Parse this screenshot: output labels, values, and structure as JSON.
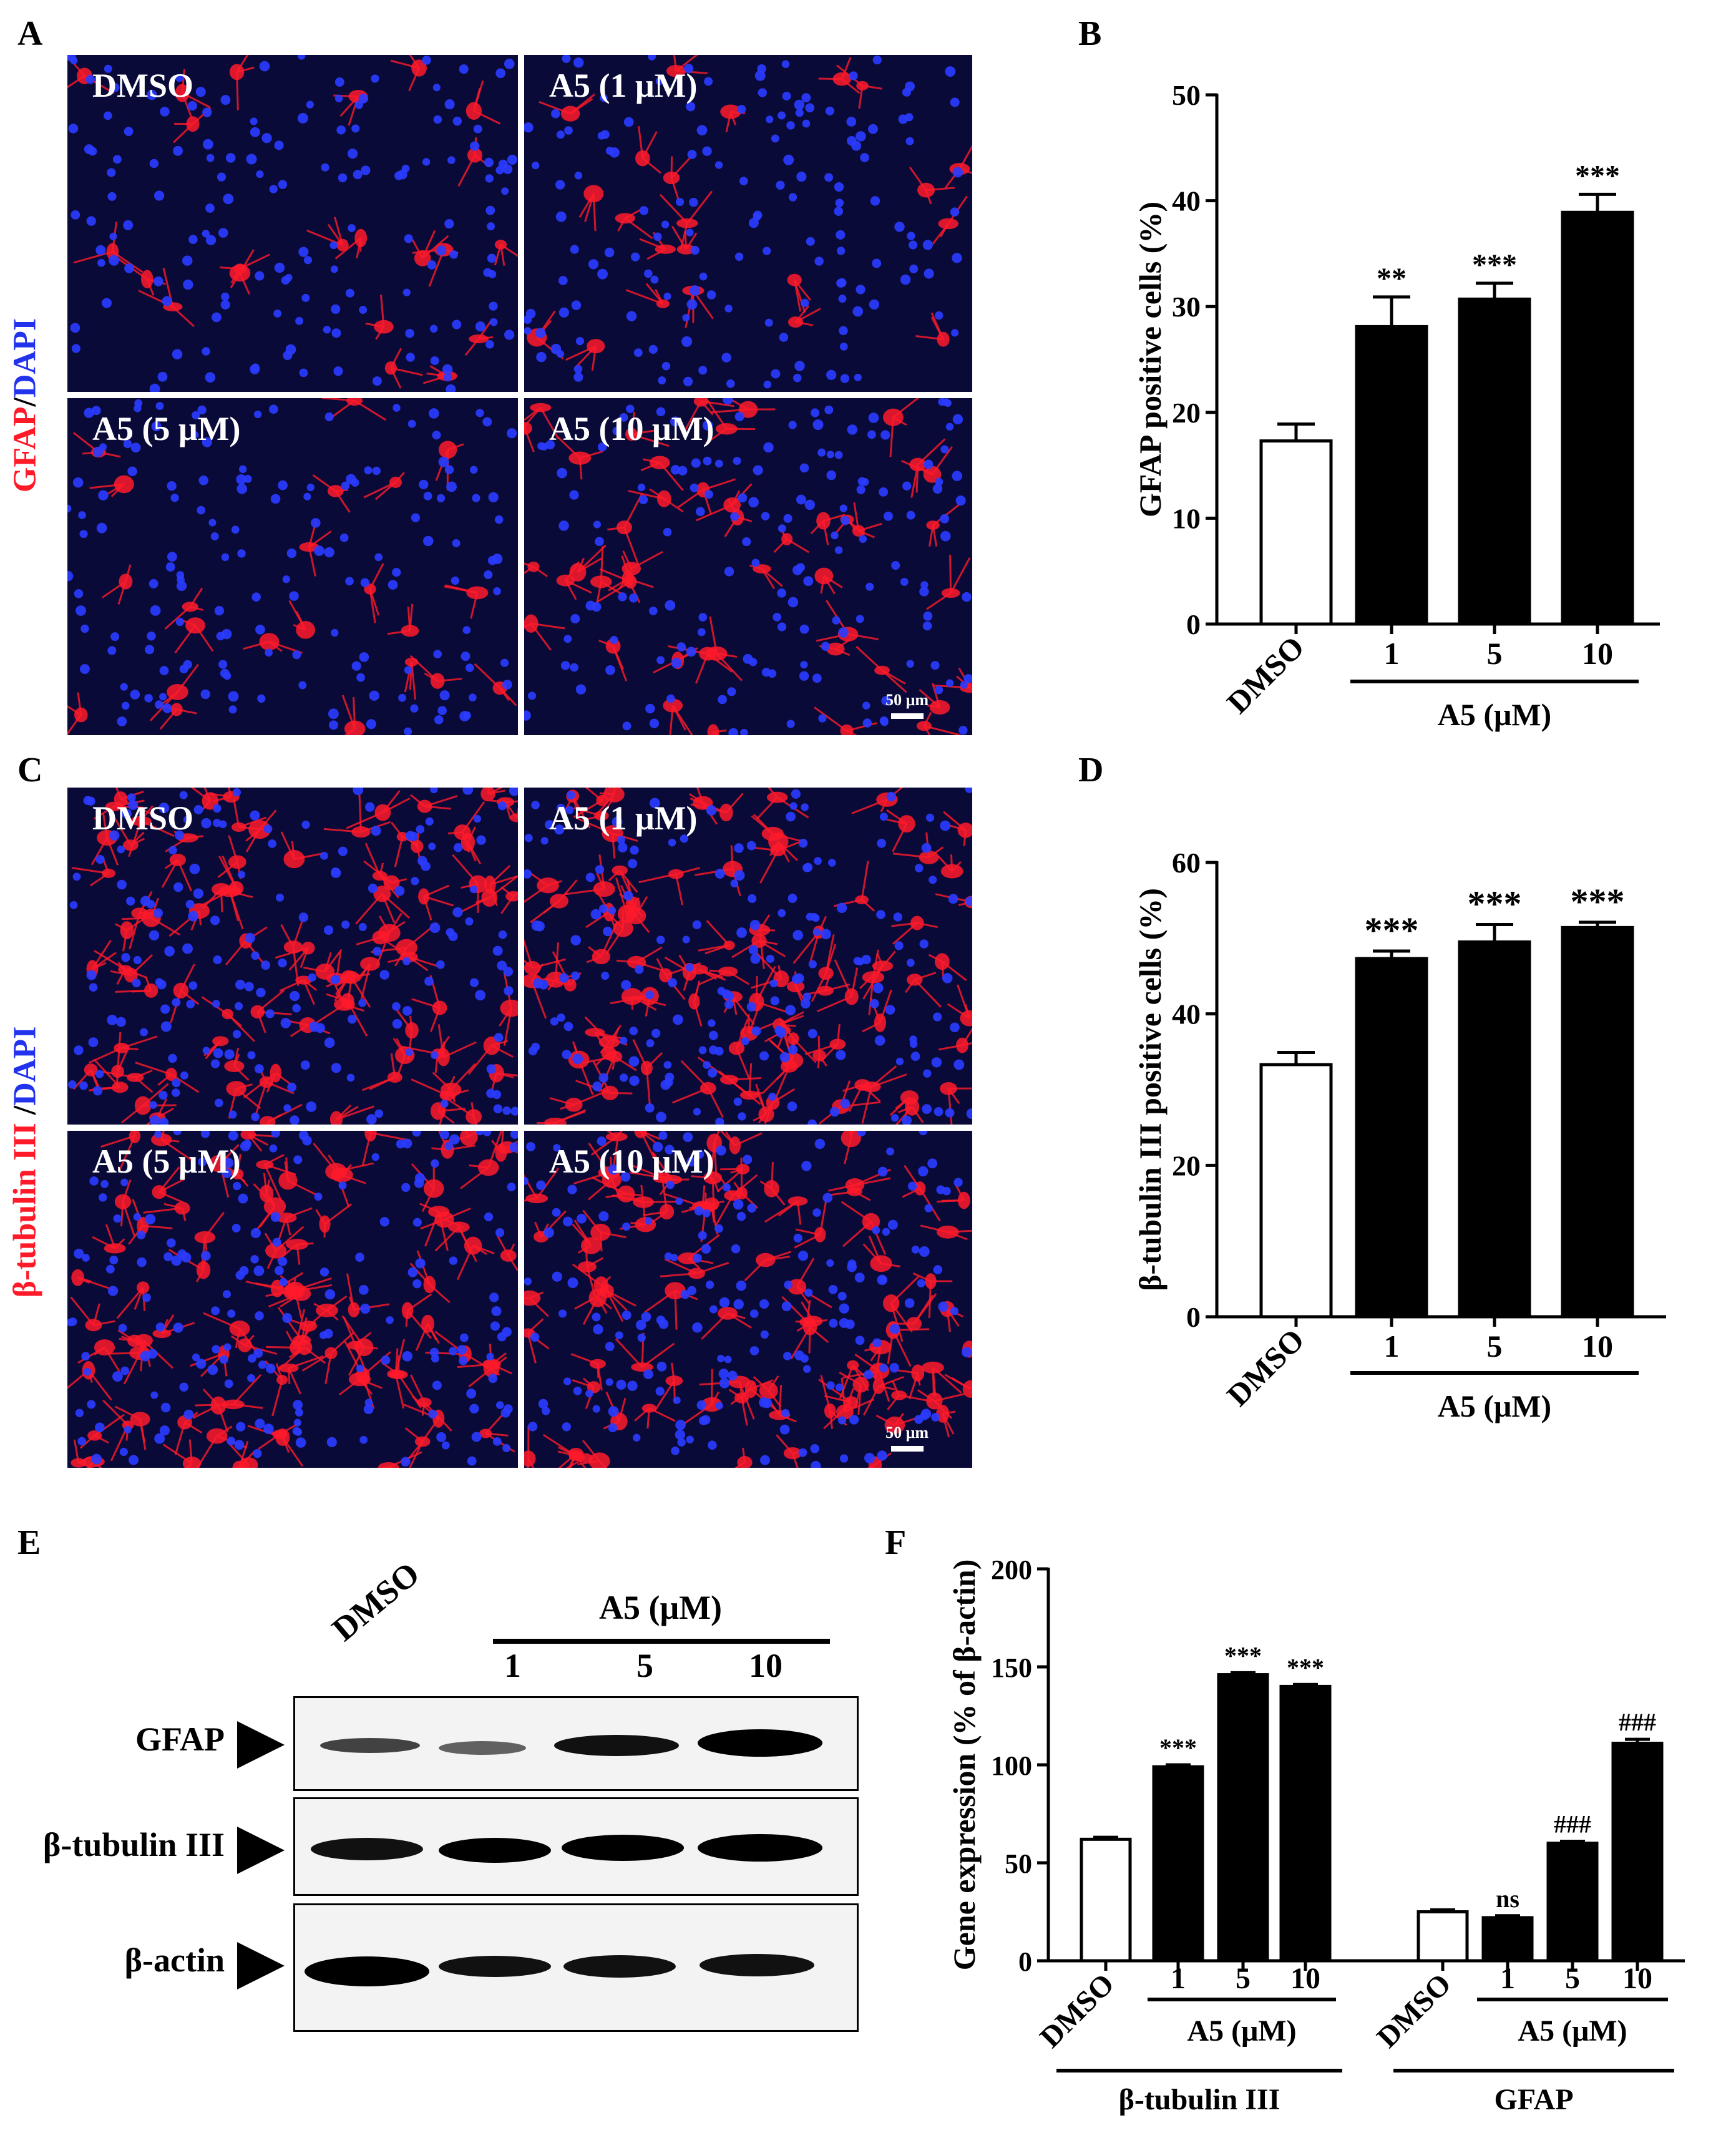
{
  "panels": {
    "a": "A",
    "b": "B",
    "c": "C",
    "d": "D",
    "e": "E",
    "f": "F"
  },
  "panel_a": {
    "side_label_red": "GFAP",
    "side_label_sep": "/",
    "side_label_blue": "DAPI",
    "images": [
      "DMSO",
      "A5 (1 μM)",
      "A5 (5 μM)",
      "A5 (10 μM)"
    ],
    "scale": "50 μm"
  },
  "panel_c": {
    "side_label_red": "β-tubulin III ",
    "side_label_sep": "/",
    "side_label_blue": "DAPI",
    "images": [
      "DMSO",
      "A5 (1 μM)",
      "A5 (5 μM)",
      "A5 (10 μM)"
    ],
    "scale": "50 μm"
  },
  "panel_e": {
    "dmso": "DMSO",
    "group": "A5 (μM)",
    "doses": [
      "1",
      "5",
      "10"
    ],
    "rows": [
      "GFAP",
      "β-tubulin III",
      "β-actin"
    ]
  },
  "colors": {
    "dapi": "#2233ee",
    "stain": "#ff1a2a",
    "background": "#0a0a38",
    "bar_fill": "#000000",
    "bar_open": "#ffffff"
  },
  "chart_data": [
    {
      "id": "B",
      "type": "bar",
      "ylabel": "GFAP positive cells (%)",
      "categories": [
        "DMSO",
        "1",
        "5",
        "10"
      ],
      "group_label": "A5 (μM)",
      "values": [
        17.3,
        28.1,
        30.7,
        38.9
      ],
      "errors": [
        1.6,
        2.8,
        1.5,
        1.7
      ],
      "annotations": [
        "",
        "**",
        "***",
        "***"
      ],
      "ylim": [
        0,
        50
      ],
      "yticks": [
        0,
        10,
        20,
        30,
        40,
        50
      ],
      "fills": [
        "open",
        "solid",
        "solid",
        "solid"
      ]
    },
    {
      "id": "D",
      "type": "bar",
      "ylabel": "β-tubulin III positive cells (%)",
      "categories": [
        "DMSO",
        "1",
        "5",
        "10"
      ],
      "group_label": "A5 (μM)",
      "values": [
        33.3,
        47.3,
        49.5,
        51.4
      ],
      "errors": [
        1.6,
        1.0,
        2.3,
        0.7
      ],
      "annotations": [
        "",
        "***",
        "***",
        "***"
      ],
      "ylim": [
        0,
        60
      ],
      "yticks": [
        0,
        20,
        40,
        60
      ],
      "fills": [
        "open",
        "solid",
        "solid",
        "solid"
      ]
    },
    {
      "id": "F",
      "type": "bar",
      "ylabel": "Gene expression (% of β-actin)",
      "ylim": [
        0,
        200
      ],
      "yticks": [
        0,
        50,
        100,
        150,
        200
      ],
      "groups": [
        {
          "name": "β-tubulin III",
          "categories": [
            "DMSO",
            "1",
            "5",
            "10"
          ],
          "group_label": "A5 (μM)",
          "values": [
            62,
            99,
            146,
            140
          ],
          "errors": [
            1,
            1,
            1,
            1
          ],
          "annotations": [
            "",
            "***",
            "***",
            "***"
          ],
          "fills": [
            "open",
            "solid",
            "solid",
            "solid"
          ]
        },
        {
          "name": "GFAP",
          "categories": [
            "DMSO",
            "1",
            "5",
            "10"
          ],
          "group_label": "A5 (μM)",
          "values": [
            25,
            22,
            60,
            111
          ],
          "errors": [
            1,
            1,
            1,
            2
          ],
          "annotations": [
            "",
            "ns",
            "###",
            "###"
          ],
          "fills": [
            "open",
            "solid",
            "solid",
            "solid"
          ]
        }
      ]
    }
  ]
}
